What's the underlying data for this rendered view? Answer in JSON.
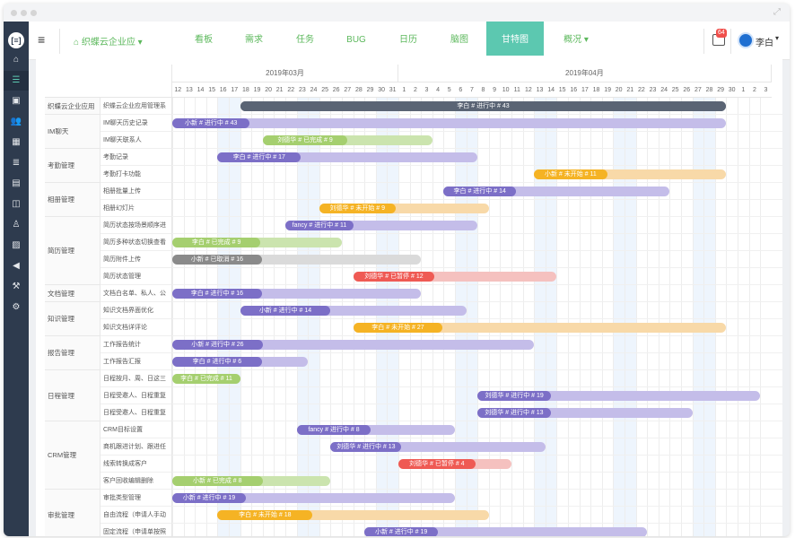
{
  "window": {
    "controls": [
      "close",
      "minimize",
      "maximize"
    ]
  },
  "sidebar": {
    "logo": "logo-icon",
    "icons": [
      "home-icon",
      "list-icon",
      "briefcase-icon",
      "users-icon",
      "calendar-icon",
      "report-icon",
      "book-icon",
      "columns-icon",
      "person-icon",
      "image-icon",
      "megaphone-icon",
      "hammer-icon",
      "settings-icon"
    ]
  },
  "topnav": {
    "app_name": "织蝶云企业应",
    "tabs": [
      "看板",
      "需求",
      "任务",
      "BUG",
      "日历",
      "脑图",
      "甘特图",
      "概况"
    ],
    "active_tab": "甘特图",
    "notification_count": "64",
    "user_name": "李白"
  },
  "gantt": {
    "months": [
      "2019年03月",
      "2019年04月"
    ],
    "days": [
      "12",
      "13",
      "14",
      "15",
      "16",
      "17",
      "18",
      "19",
      "20",
      "21",
      "22",
      "23",
      "24",
      "25",
      "26",
      "27",
      "28",
      "29",
      "30",
      "31",
      "1",
      "2",
      "3",
      "4",
      "5",
      "6",
      "7",
      "8",
      "9",
      "10",
      "11",
      "12",
      "13",
      "14",
      "15",
      "16",
      "17",
      "18",
      "19",
      "20",
      "21",
      "22",
      "23",
      "24",
      "25",
      "26",
      "27",
      "28",
      "29",
      "30",
      "1",
      "2",
      "3"
    ],
    "weekend_cols": [
      4,
      5,
      11,
      12,
      18,
      19,
      25,
      26,
      32,
      33,
      39,
      40,
      46,
      47
    ],
    "groups": [
      {
        "name": "织蝶云企业应用",
        "rows": 1
      },
      {
        "name": "IM聊天",
        "rows": 2
      },
      {
        "name": "考勤管理",
        "rows": 2
      },
      {
        "name": "相册管理",
        "rows": 2
      },
      {
        "name": "简历管理",
        "rows": 4
      },
      {
        "name": "文档管理",
        "rows": 1
      },
      {
        "name": "知识管理",
        "rows": 2
      },
      {
        "name": "报告管理",
        "rows": 2
      },
      {
        "name": "日程管理",
        "rows": 3
      },
      {
        "name": "CRM管理",
        "rows": 4
      },
      {
        "name": "审批管理",
        "rows": 3
      }
    ],
    "tasks": [
      {
        "name": "织蝶云企业应用管理系",
        "label": "李白 # 进行中 # 43",
        "start": 6,
        "end": 49,
        "progress": 100,
        "color": "#5a6474",
        "bg": "#5a6474"
      },
      {
        "name": "IM聊天历史记录",
        "label": "小新 # 进行中 # 43",
        "start": 0,
        "end": 49,
        "progress": 14,
        "color": "#7c6fc7",
        "bg": "#c4bde9"
      },
      {
        "name": "IM聊天联系人",
        "label": "刘德华 # 已完成 # 9",
        "start": 8,
        "end": 23,
        "progress": 50,
        "color": "#a5cf6f",
        "bg": "#cbe4ae"
      },
      {
        "name": "考勤记录",
        "label": "李白 # 进行中 # 17",
        "start": 4,
        "end": 27,
        "progress": 32,
        "color": "#7c6fc7",
        "bg": "#c4bde9"
      },
      {
        "name": "考勤打卡功能",
        "label": "小新 # 未开始 # 11",
        "start": 32,
        "end": 49,
        "progress": 38,
        "color": "#f5b324",
        "bg": "#f8d9a8"
      },
      {
        "name": "相册批量上传",
        "label": "李白 # 进行中 # 14",
        "start": 24,
        "end": 44,
        "progress": 32,
        "color": "#7c6fc7",
        "bg": "#c4bde9"
      },
      {
        "name": "相册幻灯片",
        "label": "刘德华 # 未开始 # 9",
        "start": 13,
        "end": 28,
        "progress": 45,
        "color": "#f5b324",
        "bg": "#f8d9a8"
      },
      {
        "name": "简历状态按场景顺序进",
        "label": "fancy # 进行中 # 11",
        "start": 10,
        "end": 27,
        "progress": 35,
        "color": "#7c6fc7",
        "bg": "#c4bde9"
      },
      {
        "name": "简历多种状态切换查看",
        "label": "李白 # 已完成 # 9",
        "start": 0,
        "end": 15,
        "progress": 52,
        "color": "#a5cf6f",
        "bg": "#cbe4ae"
      },
      {
        "name": "简历附件上传",
        "label": "小新 # 已取消 # 16",
        "start": 0,
        "end": 22,
        "progress": 36,
        "color": "#8a8a8a",
        "bg": "#dadada"
      },
      {
        "name": "简历状态管理",
        "label": "刘德华 # 已暂停 # 12",
        "start": 16,
        "end": 34,
        "progress": 40,
        "color": "#ef5a54",
        "bg": "#f5c1bf"
      },
      {
        "name": "文档白名单、私人、公",
        "label": "李白 # 进行中 # 16",
        "start": 0,
        "end": 22,
        "progress": 36,
        "color": "#7c6fc7",
        "bg": "#c4bde9"
      },
      {
        "name": "知识文档界面优化",
        "label": "小新 # 进行中 # 14",
        "start": 6,
        "end": 26,
        "progress": 40,
        "color": "#7c6fc7",
        "bg": "#c4bde9"
      },
      {
        "name": "知识文档详评论",
        "label": "李白 # 未开始 # 27",
        "start": 16,
        "end": 49,
        "progress": 24,
        "color": "#f5b324",
        "bg": "#f8d9a8"
      },
      {
        "name": "工作报告统计",
        "label": "小新 # 进行中 # 26",
        "start": 0,
        "end": 32,
        "progress": 25,
        "color": "#7c6fc7",
        "bg": "#c4bde9"
      },
      {
        "name": "工作报告汇报",
        "label": "李白 # 进行中 # 6",
        "start": 0,
        "end": 12,
        "progress": 66,
        "color": "#7c6fc7",
        "bg": "#c4bde9"
      },
      {
        "name": "日程按月、周、日这三",
        "label": "李白 # 已完成 # 11",
        "start": 0,
        "end": 6,
        "progress": 100,
        "color": "#a5cf6f",
        "bg": "#cbe4ae"
      },
      {
        "name": "日程受邀人、日程重复",
        "label": "刘德华 # 进行中 # 19",
        "start": 27,
        "end": 52,
        "progress": 26,
        "color": "#7c6fc7",
        "bg": "#c4bde9"
      },
      {
        "name": "日程受邀人、日程重复",
        "label": "刘德华 # 进行中 # 13",
        "start": 27,
        "end": 46,
        "progress": 34,
        "color": "#7c6fc7",
        "bg": "#c4bde9"
      },
      {
        "name": "CRM目标设置",
        "label": "fancy # 进行中 # 8",
        "start": 11,
        "end": 25,
        "progress": 47,
        "color": "#7c6fc7",
        "bg": "#c4bde9"
      },
      {
        "name": "商机跟进计划、跟进任",
        "label": "刘德华 # 进行中 # 13",
        "start": 14,
        "end": 33,
        "progress": 33,
        "color": "#7c6fc7",
        "bg": "#c4bde9"
      },
      {
        "name": "线索转换成客户",
        "label": "刘德华 # 已暂停 # 4",
        "start": 20,
        "end": 30,
        "progress": 68,
        "color": "#ef5a54",
        "bg": "#f5c1bf"
      },
      {
        "name": "客户回收编辑删除",
        "label": "小新 # 已完成 # 8",
        "start": 0,
        "end": 14,
        "progress": 57,
        "color": "#a5cf6f",
        "bg": "#cbe4ae"
      },
      {
        "name": "审批类型管理",
        "label": "小新 # 进行中 # 19",
        "start": 0,
        "end": 25,
        "progress": 26,
        "color": "#7c6fc7",
        "bg": "#c4bde9"
      },
      {
        "name": "自由流程（申请人手动",
        "label": "李白 # 未开始 # 18",
        "start": 4,
        "end": 28,
        "progress": 35,
        "color": "#f5b324",
        "bg": "#f8d9a8"
      },
      {
        "name": "固定流程（申请单按照",
        "label": "小新 # 进行中 # 19",
        "start": 17,
        "end": 42,
        "progress": 26,
        "color": "#7c6fc7",
        "bg": "#c4bde9"
      }
    ]
  }
}
